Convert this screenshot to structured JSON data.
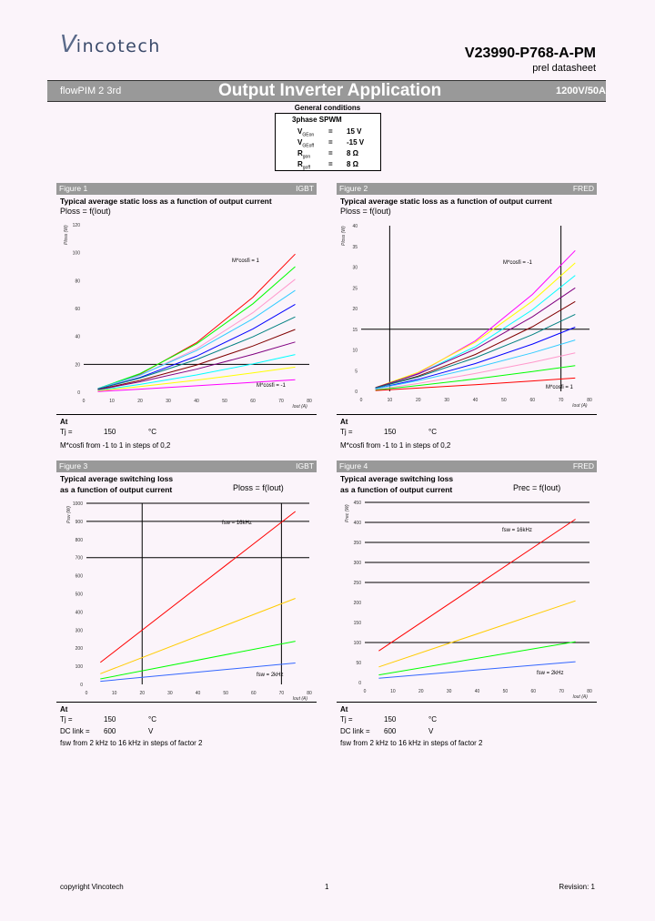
{
  "header": {
    "logo_text": "Vincotech",
    "part_number": "V23990-P768-A-PM",
    "doc_type": "prel datasheet",
    "banner_left": "flowPIM 2 3rd",
    "banner_title": "Output Inverter Application",
    "banner_right": "1200V/50A"
  },
  "general_conditions": {
    "title": "General conditions",
    "mode": "3phase SPWM",
    "rows": [
      {
        "sym": "V",
        "sub": "GEon",
        "eq": "=",
        "val": "15 V"
      },
      {
        "sym": "V",
        "sub": "GEoff",
        "eq": "=",
        "val": "-15 V"
      },
      {
        "sym": "R",
        "sub": "gon",
        "eq": "=",
        "val": "8 Ω"
      },
      {
        "sym": "R",
        "sub": "goff",
        "eq": "=",
        "val": "8 Ω"
      }
    ]
  },
  "figures": [
    {
      "label": "Figure 1",
      "device": "IGBT",
      "title1": "Typical average static loss as a function of output current",
      "title2": "",
      "formula": "Ploss = f(Iout)",
      "cond": {
        "at": "At",
        "t_label": "Tj =",
        "t_val": "150",
        "t_unit": "°C",
        "dc_label": "",
        "dc_val": "",
        "dc_unit": "",
        "note": "M*cosfi from -1 to 1 in steps of 0,2"
      }
    },
    {
      "label": "Figure 2",
      "device": "FRED",
      "title1": "Typical average static loss as a function of output current",
      "title2": "",
      "formula": "Ploss = f(Iout)",
      "cond": {
        "at": "At",
        "t_label": "Tj =",
        "t_val": "150",
        "t_unit": "°C",
        "dc_label": "",
        "dc_val": "",
        "dc_unit": "",
        "note": "M*cosfi from -1 to 1 in steps of 0,2"
      }
    },
    {
      "label": "Figure 3",
      "device": "IGBT",
      "title1": "Typical average switching loss",
      "title2": "as a function of output current",
      "formula": "Ploss = f(Iout)",
      "cond": {
        "at": "At",
        "t_label": "Tj =",
        "t_val": "150",
        "t_unit": "°C",
        "dc_label": "DC link =",
        "dc_val": "600",
        "dc_unit": "V",
        "note": "fsw from 2 kHz to 16 kHz in steps of factor 2"
      }
    },
    {
      "label": "Figure 4",
      "device": "FRED",
      "title1": "Typical average switching loss",
      "title2": "as a function of output current",
      "formula": "Prec = f(Iout)",
      "cond": {
        "at": "At",
        "t_label": "Tj =",
        "t_val": "150",
        "t_unit": "°C",
        "dc_label": "DC link =",
        "dc_val": "600",
        "dc_unit": "V",
        "note": "fsw from 2 kHz to 16 kHz in steps of factor 2"
      }
    }
  ],
  "chart_data": [
    {
      "type": "line",
      "xlabel": "Iout (A)",
      "ylabel": "Ploss (W)",
      "xlim": [
        0,
        80
      ],
      "ylim": [
        0,
        120
      ],
      "xticks": [
        "0",
        "10",
        "20",
        "30",
        "40",
        "50",
        "60",
        "70",
        "80"
      ],
      "yticks": [
        "0",
        "20",
        "40",
        "60",
        "80",
        "100",
        "120"
      ],
      "reference_lines": {
        "h": [
          20
        ],
        "v": []
      },
      "annotations": [
        "M*cosfi = 1",
        "M*cosfi = -1"
      ],
      "x": [
        5,
        20,
        40,
        60,
        75
      ],
      "series": [
        {
          "color": "#ff0000",
          "values": [
            2.3,
            12.9,
            35.5,
            68.1,
            99
          ]
        },
        {
          "color": "#00ff00",
          "values": [
            2.6,
            13.4,
            34.6,
            63.4,
            90
          ]
        },
        {
          "color": "#ff99cc",
          "values": [
            2.4,
            12.1,
            31.1,
            57,
            81
          ]
        },
        {
          "color": "#33ccff",
          "values": [
            2.6,
            12.3,
            29.9,
            52.6,
            73
          ]
        },
        {
          "color": "#0000ff",
          "values": [
            2.2,
            10.6,
            25.8,
            45.4,
            63
          ]
        },
        {
          "color": "#008080",
          "values": [
            2.3,
            10.2,
            23.4,
            39.7,
            54
          ]
        },
        {
          "color": "#800000",
          "values": [
            1.9,
            8.5,
            19.5,
            33.1,
            45
          ]
        },
        {
          "color": "#800080",
          "values": [
            1.7,
            7.5,
            16.5,
            27.1,
            36
          ]
        },
        {
          "color": "#00ffff",
          "values": [
            1.3,
            5.6,
            12.4,
            20.3,
            27
          ]
        },
        {
          "color": "#ffff00",
          "values": [
            1.0,
            4.1,
            8.7,
            13.8,
            18
          ]
        },
        {
          "color": "#ff00ff",
          "values": [
            0.5,
            2.2,
            4.6,
            7.1,
            9
          ]
        }
      ]
    },
    {
      "type": "line",
      "xlabel": "Iout (A)",
      "ylabel": "Ploss (W)",
      "xlim": [
        0,
        80
      ],
      "ylim": [
        0,
        40
      ],
      "xticks": [
        "0",
        "10",
        "20",
        "30",
        "40",
        "50",
        "60",
        "70",
        "80"
      ],
      "yticks": [
        "0",
        "5",
        "10",
        "15",
        "20",
        "25",
        "30",
        "35",
        "40"
      ],
      "reference_lines": {
        "h": [
          15
        ],
        "v": [
          10,
          70
        ]
      },
      "annotations": [
        "M*cosfi = -1",
        "M*cosfi = 1"
      ],
      "x": [
        5,
        20,
        40,
        60,
        75
      ],
      "series": [
        {
          "color": "#ff00ff",
          "values": [
            0.8,
            4.4,
            12.2,
            23.4,
            34
          ]
        },
        {
          "color": "#ffff00",
          "values": [
            0.9,
            4.6,
            11.9,
            21.8,
            31
          ]
        },
        {
          "color": "#00ffff",
          "values": [
            0.8,
            4.2,
            10.8,
            19.7,
            28
          ]
        },
        {
          "color": "#800080",
          "values": [
            0.9,
            4.2,
            10.2,
            18,
            25
          ]
        },
        {
          "color": "#800000",
          "values": [
            0.8,
            3.7,
            8.9,
            15.6,
            21.7
          ]
        },
        {
          "color": "#008080",
          "values": [
            0.8,
            3.5,
            8.1,
            13.7,
            18.6
          ]
        },
        {
          "color": "#0000ff",
          "values": [
            0.6,
            2.9,
            6.7,
            11.4,
            15.5
          ]
        },
        {
          "color": "#33ccff",
          "values": [
            0.6,
            2.6,
            5.7,
            9.3,
            12.4
          ]
        },
        {
          "color": "#ff99cc",
          "values": [
            0.4,
            1.9,
            4.3,
            7,
            9.3
          ]
        },
        {
          "color": "#00ff00",
          "values": [
            0.3,
            1.4,
            3,
            4.8,
            6.2
          ]
        },
        {
          "color": "#ff0000",
          "values": [
            0.2,
            0.8,
            1.6,
            2.5,
            3.2
          ]
        }
      ]
    },
    {
      "type": "line",
      "xlabel": "Iout (A)",
      "ylabel": "Psw (W)",
      "xlim": [
        0,
        80
      ],
      "ylim": [
        0,
        1000
      ],
      "xticks": [
        "0",
        "10",
        "20",
        "30",
        "40",
        "50",
        "60",
        "70",
        "80"
      ],
      "yticks": [
        "0",
        "100",
        "200",
        "300",
        "400",
        "500",
        "600",
        "700",
        "800",
        "900",
        "1000"
      ],
      "reference_lines": {
        "h": [
          700,
          900,
          1000
        ],
        "v": [
          20,
          70
        ]
      },
      "annotations": [
        "fsw = 16kHz",
        "fsw = 2kHz"
      ],
      "x": [
        5,
        75
      ],
      "series": [
        {
          "color": "#ff0000",
          "values": [
            121,
            955
          ]
        },
        {
          "color": "#ffcc00",
          "values": [
            59,
            475
          ]
        },
        {
          "color": "#00ff00",
          "values": [
            30,
            238
          ]
        },
        {
          "color": "#3366ff",
          "values": [
            17,
            118
          ]
        }
      ]
    },
    {
      "type": "line",
      "xlabel": "Iout (A)",
      "ylabel": "Prec (W)",
      "xlim": [
        0,
        80
      ],
      "ylim": [
        0,
        450
      ],
      "xticks": [
        "0",
        "10",
        "20",
        "30",
        "40",
        "50",
        "60",
        "70",
        "80"
      ],
      "yticks": [
        "0",
        "50",
        "100",
        "150",
        "200",
        "250",
        "300",
        "350",
        "400",
        "450"
      ],
      "reference_lines": {
        "h": [
          100,
          250,
          300,
          350,
          400,
          450
        ],
        "v": []
      },
      "annotations": [
        "fsw = 16kHz",
        "fsw = 2kHz"
      ],
      "x": [
        5,
        75
      ],
      "series": [
        {
          "color": "#ff0000",
          "values": [
            79,
            408
          ]
        },
        {
          "color": "#ffcc00",
          "values": [
            39,
            204
          ]
        },
        {
          "color": "#00ff00",
          "values": [
            19,
            102
          ]
        },
        {
          "color": "#3366ff",
          "values": [
            11,
            52
          ]
        }
      ]
    }
  ],
  "footer": {
    "copyright": "copyright Vincotech",
    "page": "1",
    "revision": "Revision: 1"
  }
}
